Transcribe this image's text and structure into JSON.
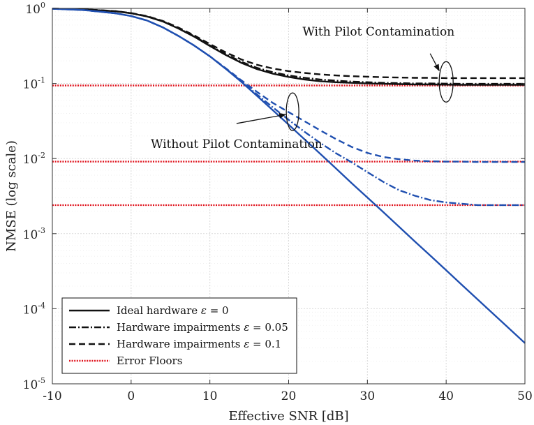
{
  "chart_data": {
    "type": "line",
    "xlabel": "Effective SNR [dB]",
    "ylabel": "NMSE (log scale)",
    "xlim": [
      -10,
      50
    ],
    "ylim_log10": [
      -5,
      0
    ],
    "x_ticks": [
      -10,
      0,
      10,
      20,
      30,
      40,
      50
    ],
    "x_tick_labels": [
      "-10",
      "0",
      "10",
      "20",
      "30",
      "40",
      "50"
    ],
    "y_ticks_exp": [
      0,
      -1,
      -2,
      -3,
      -4,
      -5
    ],
    "y_tick_base": "10",
    "y_tick_exps": [
      "0",
      "-1",
      "-2",
      "-3",
      "-4",
      "-5"
    ],
    "grid": "major and minor",
    "colors": {
      "with_pilot": "#111111",
      "without_pilot": "#1f4fb0",
      "floor": "#e0141e",
      "axis": "#333333",
      "grid": "#d9d9d9"
    },
    "series": [
      {
        "name": "Ideal hardware, with pilot contamination",
        "style": "solid",
        "group": "with",
        "x": [
          -10,
          -6,
          -2,
          0,
          2,
          4,
          6,
          8,
          10,
          12,
          14,
          16,
          18,
          20,
          22,
          24,
          26,
          28,
          30,
          32,
          34,
          36,
          38,
          40,
          42,
          44,
          46,
          48,
          50
        ],
        "y": [
          0.992,
          0.97,
          0.915,
          0.86,
          0.78,
          0.67,
          0.54,
          0.42,
          0.315,
          0.24,
          0.188,
          0.155,
          0.135,
          0.122,
          0.113,
          0.107,
          0.104,
          0.102,
          0.1,
          0.099,
          0.098,
          0.097,
          0.097,
          0.0965,
          0.096,
          0.096,
          0.096,
          0.096,
          0.096
        ]
      },
      {
        "name": "Hardware impairments 0.05, with pilot contamination",
        "style": "dashdot",
        "group": "with",
        "x": [
          -10,
          -6,
          -2,
          0,
          2,
          4,
          6,
          8,
          10,
          12,
          14,
          16,
          18,
          20,
          22,
          24,
          26,
          28,
          30,
          32,
          34,
          36,
          38,
          40,
          42,
          44,
          46,
          48,
          50
        ],
        "y": [
          0.992,
          0.97,
          0.917,
          0.862,
          0.783,
          0.674,
          0.545,
          0.426,
          0.321,
          0.246,
          0.194,
          0.161,
          0.141,
          0.128,
          0.119,
          0.113,
          0.109,
          0.106,
          0.104,
          0.102,
          0.101,
          0.1,
          0.1,
          0.0995,
          0.099,
          0.099,
          0.099,
          0.099,
          0.099
        ]
      },
      {
        "name": "Hardware impairments 0.1, with pilot contamination",
        "style": "dashed",
        "group": "with",
        "x": [
          -10,
          -6,
          -2,
          0,
          2,
          4,
          6,
          8,
          10,
          12,
          14,
          16,
          18,
          20,
          22,
          24,
          26,
          28,
          30,
          32,
          34,
          36,
          38,
          40,
          42,
          44,
          46,
          48,
          50
        ],
        "y": [
          0.992,
          0.972,
          0.92,
          0.866,
          0.79,
          0.682,
          0.556,
          0.438,
          0.335,
          0.26,
          0.209,
          0.177,
          0.158,
          0.146,
          0.138,
          0.132,
          0.128,
          0.125,
          0.123,
          0.121,
          0.12,
          0.119,
          0.119,
          0.118,
          0.118,
          0.118,
          0.118,
          0.118,
          0.118
        ]
      },
      {
        "name": "Ideal hardware, without pilot contamination",
        "style": "solid",
        "group": "without",
        "x": [
          -10,
          -6,
          -2,
          0,
          2,
          4,
          6,
          8,
          10,
          12,
          14,
          16,
          18,
          20,
          22,
          24,
          26,
          28,
          30,
          32,
          34,
          36,
          38,
          40,
          42,
          44,
          46,
          48,
          50
        ],
        "y": [
          0.99,
          0.95,
          0.86,
          0.79,
          0.69,
          0.56,
          0.43,
          0.32,
          0.23,
          0.157,
          0.105,
          0.068,
          0.044,
          0.0283,
          0.0181,
          0.0116,
          0.0074,
          0.0047,
          0.00303,
          0.00194,
          0.00124,
          0.00079,
          0.000508,
          0.000325,
          0.000208,
          0.000133,
          8.5e-05,
          5.45e-05,
          3.49e-05
        ]
      },
      {
        "name": "Hardware impairments 0.05, without pilot contamination",
        "style": "dashdot",
        "group": "without",
        "x": [
          -10,
          -6,
          -2,
          0,
          2,
          4,
          6,
          8,
          10,
          12,
          14,
          16,
          18,
          20,
          22,
          24,
          26,
          28,
          30,
          32,
          34,
          36,
          38,
          40,
          42,
          44,
          46,
          48,
          50
        ],
        "y": [
          0.99,
          0.95,
          0.86,
          0.79,
          0.69,
          0.56,
          0.43,
          0.32,
          0.23,
          0.158,
          0.107,
          0.071,
          0.048,
          0.0328,
          0.0228,
          0.0162,
          0.0118,
          0.0089,
          0.0066,
          0.0049,
          0.0038,
          0.0032,
          0.0028,
          0.0026,
          0.0025,
          0.0024,
          0.0024,
          0.0024,
          0.0024
        ]
      },
      {
        "name": "Hardware impairments 0.1, without pilot contamination",
        "style": "dashed",
        "group": "without",
        "x": [
          -10,
          -6,
          -2,
          0,
          2,
          4,
          6,
          8,
          10,
          12,
          14,
          16,
          18,
          20,
          22,
          24,
          26,
          28,
          30,
          32,
          34,
          36,
          38,
          40,
          42,
          44,
          46,
          48,
          50
        ],
        "y": [
          0.99,
          0.95,
          0.86,
          0.79,
          0.69,
          0.56,
          0.43,
          0.32,
          0.23,
          0.16,
          0.11,
          0.077,
          0.055,
          0.0415,
          0.0315,
          0.0238,
          0.0182,
          0.0143,
          0.0119,
          0.0105,
          0.0098,
          0.0094,
          0.0092,
          0.0091,
          0.0091,
          0.009,
          0.009,
          0.009,
          0.009
        ]
      }
    ],
    "error_floors": [
      0.094,
      0.0091,
      0.0024
    ],
    "annotations": [
      {
        "text": "With Pilot Contamination",
        "ellipse_x": 40,
        "ellipse_y": 0.105,
        "arrow_from_x": 38.5,
        "arrow_from_y": 0.22
      },
      {
        "text": "Without Pilot Contamination",
        "ellipse_x": 20.5,
        "ellipse_y": 0.042,
        "arrow_from_x": 12.5,
        "arrow_from_y": 0.013
      }
    ],
    "legend": {
      "placement": "bottom-left",
      "entries": [
        {
          "prefix": "Ideal hardware ",
          "sym": "ε",
          "suffix": " = 0",
          "style": "solid",
          "color": "#111111"
        },
        {
          "prefix": "Hardware impairments ",
          "sym": "ε",
          "suffix": " = 0.05",
          "style": "dashdot",
          "color": "#111111"
        },
        {
          "prefix": "Hardware impairments ",
          "sym": "ε",
          "suffix": " = 0.1",
          "style": "dashed",
          "color": "#111111"
        },
        {
          "prefix": "Error Floors",
          "sym": "",
          "suffix": "",
          "style": "dotted",
          "color": "#e0141e"
        }
      ]
    }
  }
}
